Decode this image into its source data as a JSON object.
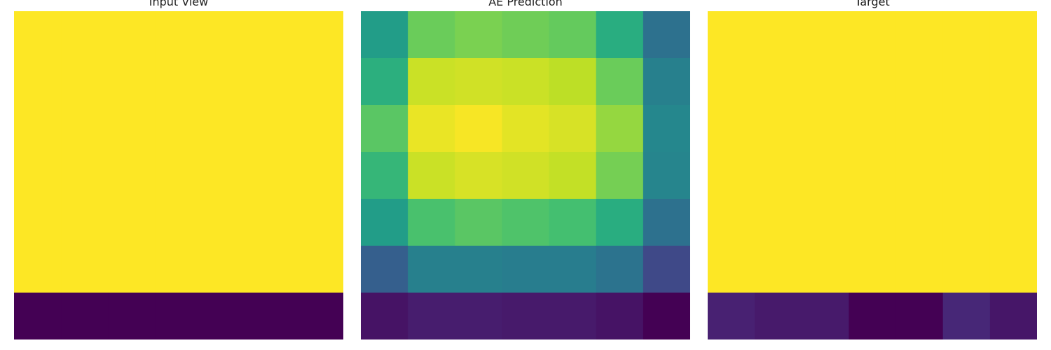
{
  "colormap": "viridis",
  "chart_data": [
    {
      "type": "heatmap",
      "title": "Input View",
      "rows": 7,
      "cols": 7,
      "vmin": 0,
      "vmax": 1,
      "values": [
        [
          1,
          1,
          1,
          1,
          1,
          1,
          1
        ],
        [
          1,
          1,
          1,
          1,
          1,
          1,
          1
        ],
        [
          1,
          1,
          1,
          1,
          1,
          1,
          1
        ],
        [
          1,
          1,
          1,
          1,
          1,
          1,
          1
        ],
        [
          1,
          1,
          1,
          1,
          1,
          1,
          1
        ],
        [
          1,
          1,
          1,
          1,
          1,
          1,
          1
        ],
        [
          0,
          0,
          0,
          0,
          0,
          0,
          0
        ]
      ]
    },
    {
      "type": "heatmap",
      "title": "AE Prediction",
      "rows": 7,
      "cols": 7,
      "vmin": 0,
      "vmax": 1,
      "values": [
        [
          0.55,
          0.77,
          0.8,
          0.78,
          0.76,
          0.62,
          0.37
        ],
        [
          0.63,
          0.92,
          0.93,
          0.92,
          0.9,
          0.77,
          0.43
        ],
        [
          0.74,
          0.97,
          0.99,
          0.96,
          0.94,
          0.84,
          0.46
        ],
        [
          0.66,
          0.92,
          0.94,
          0.93,
          0.91,
          0.79,
          0.45
        ],
        [
          0.55,
          0.71,
          0.74,
          0.72,
          0.7,
          0.62,
          0.37
        ],
        [
          0.3,
          0.43,
          0.43,
          0.42,
          0.42,
          0.38,
          0.22
        ],
        [
          0.05,
          0.08,
          0.08,
          0.07,
          0.07,
          0.05,
          0.0
        ]
      ]
    },
    {
      "type": "heatmap",
      "title": "Target",
      "rows": 7,
      "cols": 7,
      "vmin": 0,
      "vmax": 1,
      "values": [
        [
          1,
          1,
          1,
          1,
          1,
          1,
          1
        ],
        [
          1,
          1,
          1,
          1,
          1,
          1,
          1
        ],
        [
          1,
          1,
          1,
          1,
          1,
          1,
          1
        ],
        [
          1,
          1,
          1,
          1,
          1,
          1,
          1
        ],
        [
          1,
          1,
          1,
          1,
          1,
          1,
          1
        ],
        [
          1,
          1,
          1,
          1,
          1,
          1,
          1
        ],
        [
          0.09,
          0.07,
          0.07,
          0,
          0,
          0.11,
          0.06
        ]
      ]
    }
  ]
}
